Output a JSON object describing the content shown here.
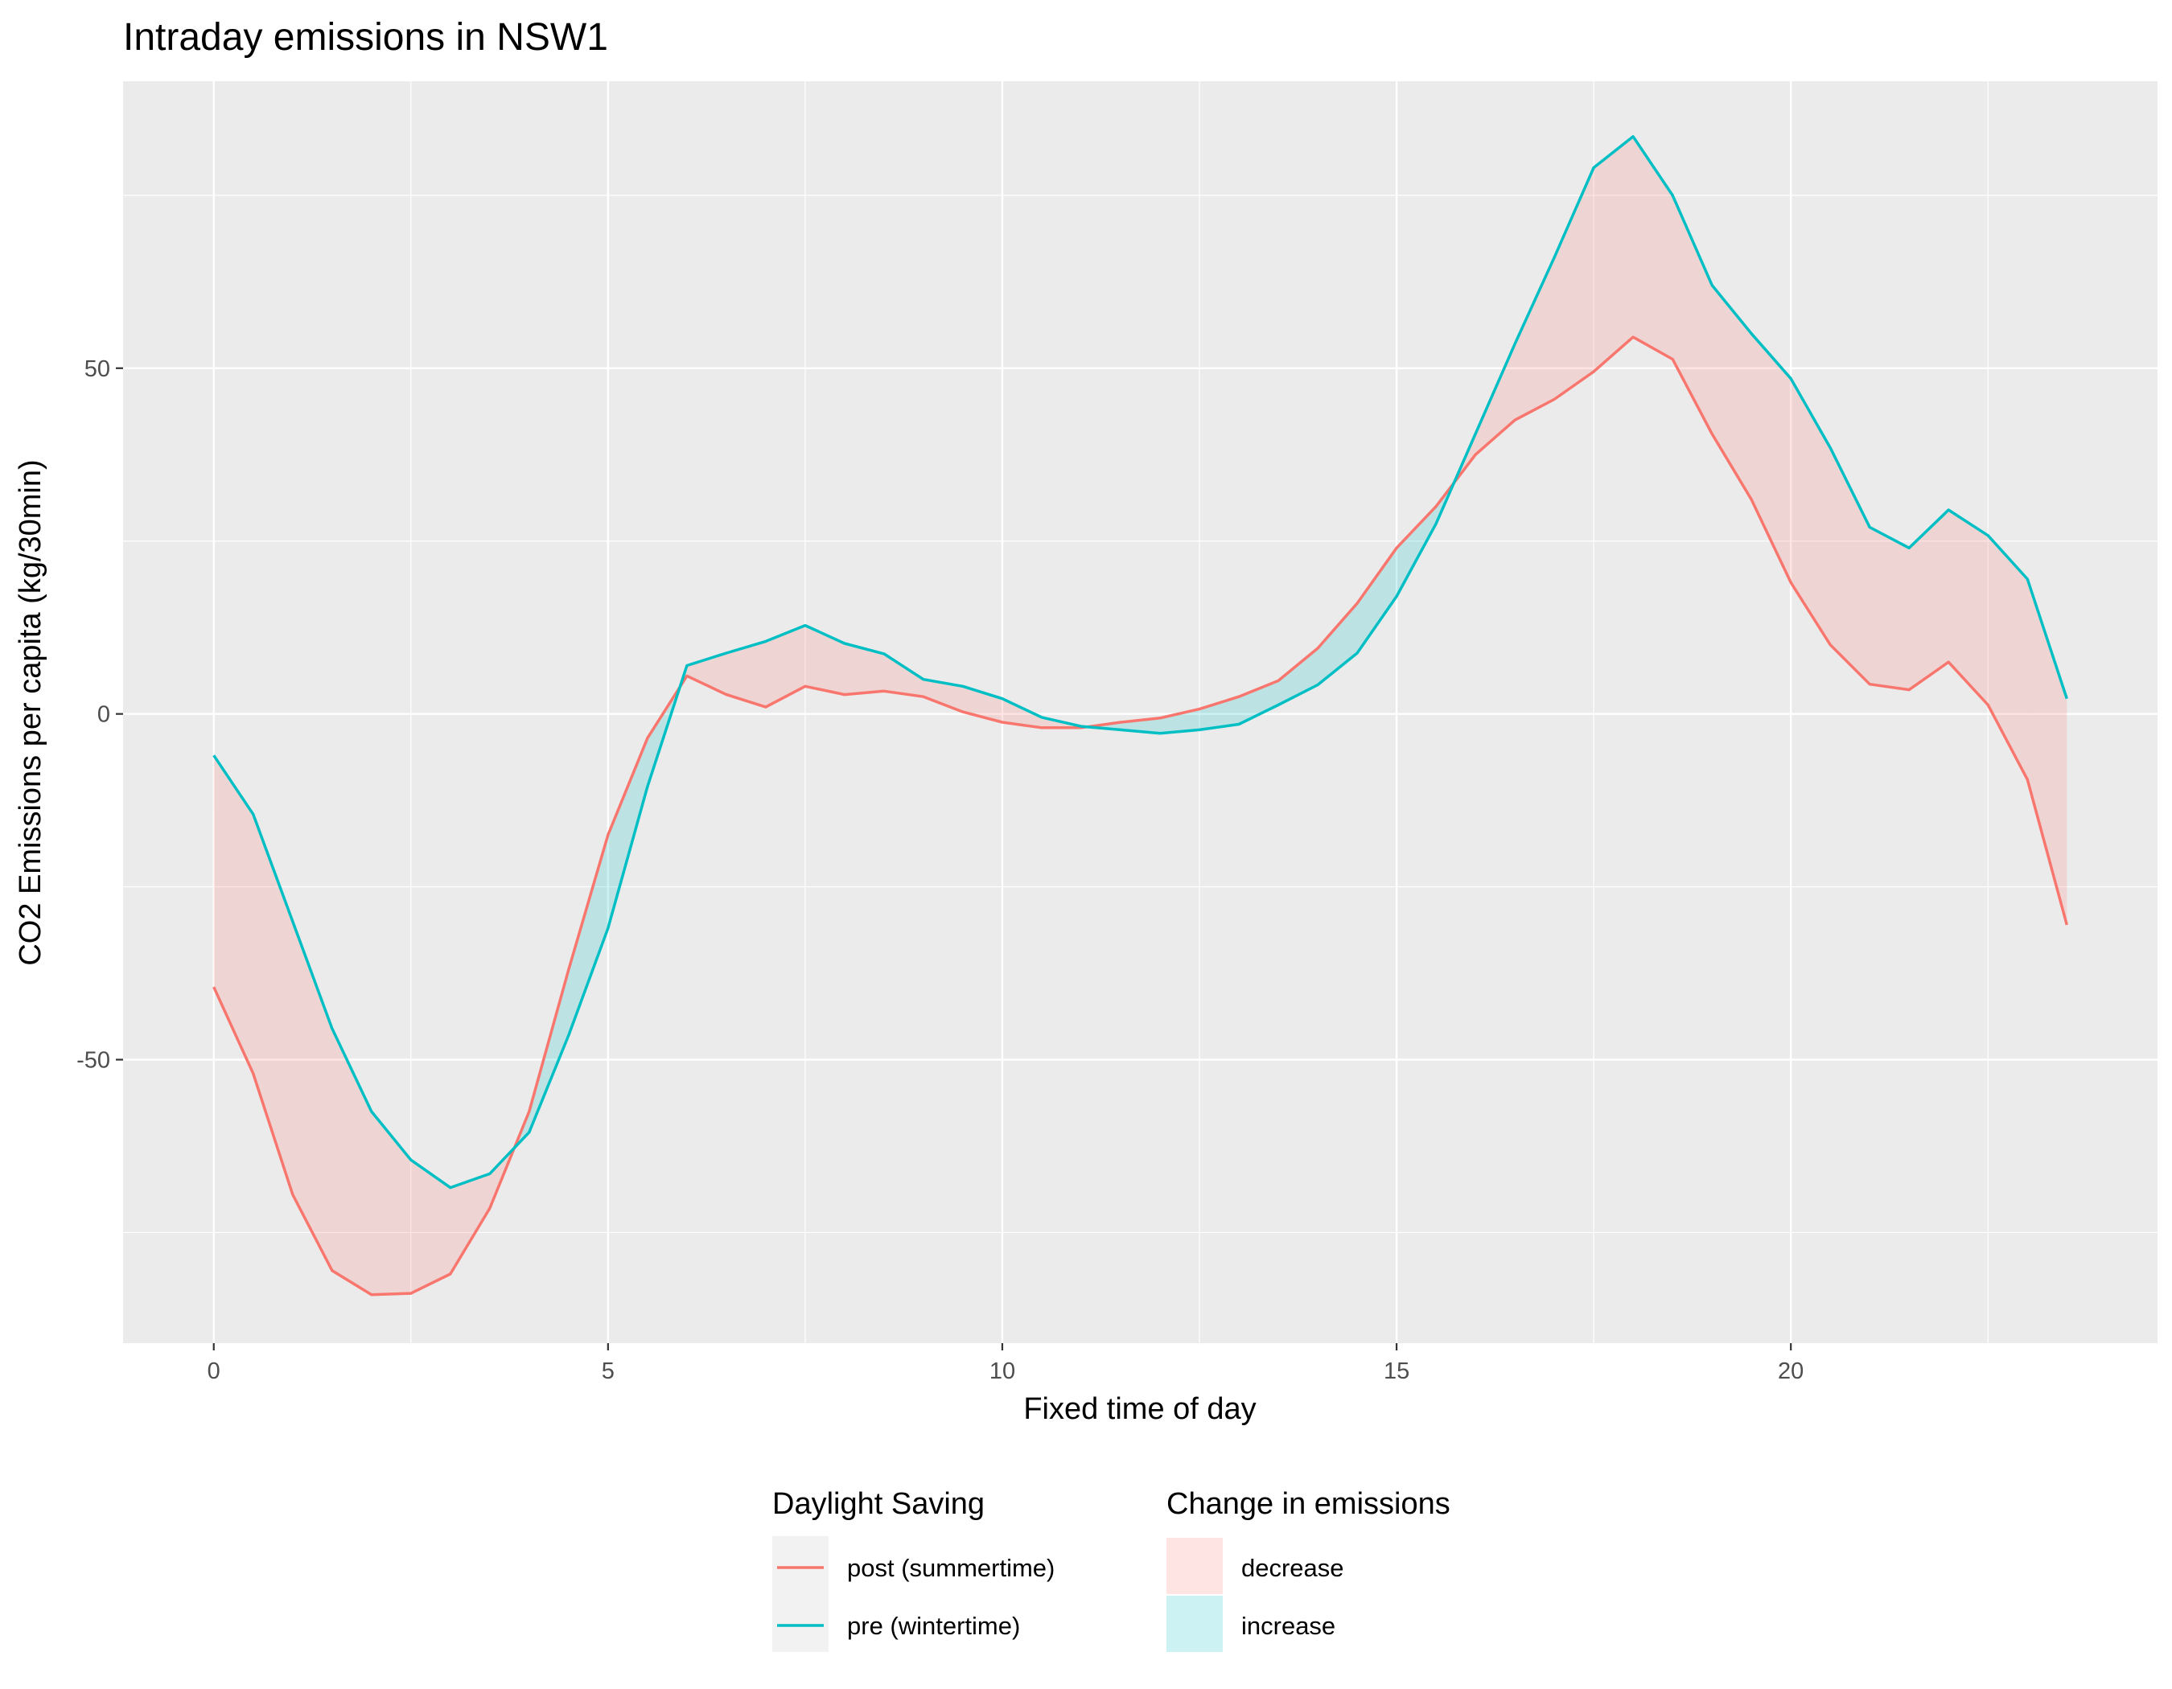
{
  "chart_data": {
    "type": "line",
    "title": "Intraday emissions in NSW1",
    "xlabel": "Fixed time of day",
    "ylabel": "CO2 Emissions per capita (kg/30min)",
    "xlim": [
      -1.15,
      24.65
    ],
    "ylim": [
      -91,
      91.5
    ],
    "x_ticks": [
      0,
      5,
      10,
      15,
      20
    ],
    "y_ticks": [
      -50,
      0,
      50
    ],
    "grid": true,
    "x": [
      0,
      0.5,
      1,
      1.5,
      2,
      2.5,
      3,
      3.5,
      4,
      4.5,
      5,
      5.5,
      6,
      6.5,
      7,
      7.5,
      8,
      8.5,
      9,
      9.5,
      10,
      10.5,
      11,
      11.5,
      12,
      12.5,
      13,
      13.5,
      14,
      14.5,
      15,
      15.5,
      16,
      16.5,
      17,
      17.5,
      18,
      18.5,
      19,
      19.5,
      20,
      20.5,
      21,
      21.5,
      22,
      22.5,
      23,
      23.5
    ],
    "series": [
      {
        "name": "post (summertime)",
        "color": "#F8766D",
        "values": [
          -39.5,
          -52,
          -69.5,
          -80.5,
          -84,
          -83.8,
          -81,
          -71.5,
          -57.5,
          -37,
          -17.5,
          -3.5,
          5.5,
          2.8,
          1,
          4,
          2.8,
          3.3,
          2.5,
          0.3,
          -1.2,
          -2,
          -2,
          -1.2,
          -0.6,
          0.7,
          2.5,
          4.8,
          9.5,
          16,
          24,
          30,
          37.5,
          42.5,
          45.5,
          49.5,
          54.5,
          51.3,
          40.5,
          31,
          19,
          10,
          4.3,
          3.5,
          7.5,
          1.3,
          -9.5,
          -30.5
        ]
      },
      {
        "name": "pre (wintertime)",
        "color": "#00BFC4",
        "values": [
          -6,
          -14.5,
          -30,
          -45.5,
          -57.5,
          -64.5,
          -68.5,
          -66.5,
          -60.5,
          -46.5,
          -31,
          -10.5,
          7,
          8.8,
          10.5,
          12.8,
          10.2,
          8.7,
          5,
          4,
          2.2,
          -0.5,
          -1.8,
          -2.3,
          -2.8,
          -2.3,
          -1.5,
          1.3,
          4.2,
          8.8,
          17,
          27.5,
          40.5,
          53.5,
          66,
          79,
          83.5,
          75,
          62,
          55,
          48.5,
          38.5,
          27,
          24,
          29.5,
          25.8,
          19.5,
          2.2
        ]
      }
    ],
    "fill_colors": {
      "decrease": "#F8766D",
      "increase": "#00BFC4"
    },
    "legends": [
      {
        "title": "Daylight Saving",
        "kind": "line",
        "entries": [
          "post (summertime)",
          "pre (wintertime)"
        ]
      },
      {
        "title": "Change in emissions",
        "kind": "fill",
        "entries": [
          "decrease",
          "increase"
        ]
      }
    ],
    "legend_position": "bottom"
  }
}
